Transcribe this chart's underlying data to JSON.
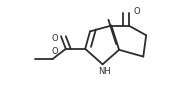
{
  "background_color": "#ffffff",
  "line_color": "#2d2d2d",
  "line_width": 1.3,
  "figsize": [
    1.82,
    0.87
  ],
  "dpi": 100,
  "atoms": {
    "NH": {
      "label": "NH",
      "fontsize": 6.0
    },
    "O_keto": {
      "label": "O",
      "fontsize": 6.0
    },
    "O_ester_db": {
      "label": "O",
      "fontsize": 6.0
    },
    "O_ester_single": {
      "label": "O",
      "fontsize": 6.0
    }
  }
}
